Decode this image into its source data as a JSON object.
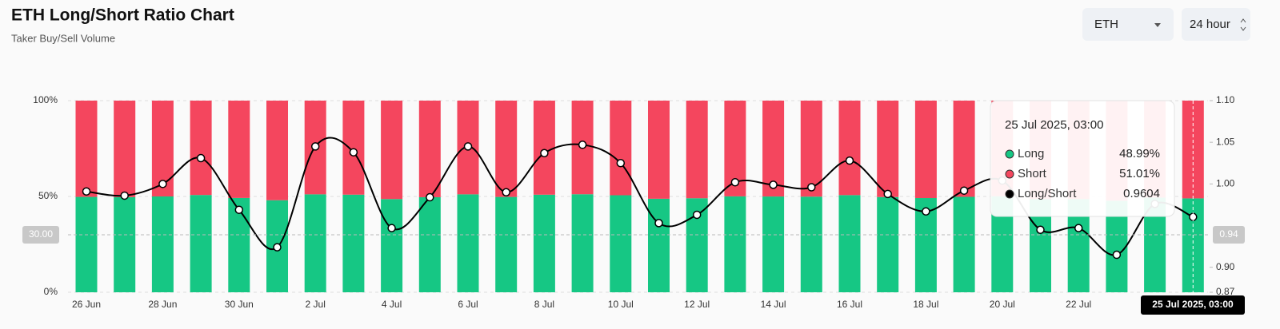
{
  "header": {
    "title": "ETH Long/Short Ratio Chart",
    "subtitle": "Taker Buy/Sell Volume"
  },
  "controls": {
    "symbol": "ETH",
    "interval": "24 hour"
  },
  "chart_data": {
    "type": "bar",
    "categories": [
      "26 Jun",
      null,
      "28 Jun",
      null,
      "30 Jun",
      null,
      "2 Jul",
      null,
      "4 Jul",
      null,
      "6 Jul",
      null,
      "8 Jul",
      null,
      "10 Jul",
      null,
      "12 Jul",
      null,
      "14 Jul",
      null,
      "16 Jul",
      null,
      "18 Jul",
      null,
      "20 Jul",
      null,
      "22 Jul",
      null,
      null,
      null
    ],
    "series": [
      {
        "name": "Long",
        "color": "#16c784",
        "values": [
          49.77,
          49.65,
          50.0,
          50.76,
          49.21,
          48.02,
          51.1,
          50.93,
          48.64,
          49.6,
          51.1,
          49.75,
          50.91,
          51.15,
          50.62,
          48.8,
          49.06,
          50.05,
          49.97,
          49.9,
          50.69,
          49.7,
          49.16,
          49.8,
          50.1,
          48.59,
          48.64,
          47.78,
          49.39,
          48.99
        ]
      },
      {
        "name": "Short",
        "color": "#f4465e",
        "values": [
          50.23,
          50.35,
          50.0,
          49.24,
          50.79,
          51.98,
          48.9,
          49.07,
          51.36,
          50.4,
          48.9,
          50.25,
          49.09,
          48.85,
          49.38,
          51.2,
          50.94,
          49.95,
          50.03,
          50.1,
          49.31,
          50.3,
          50.84,
          50.2,
          49.9,
          51.41,
          51.36,
          52.22,
          50.61,
          51.01
        ]
      },
      {
        "name": "Long/Short",
        "color": "#000000",
        "axis": "y2",
        "values": [
          0.991,
          0.986,
          1.0,
          1.031,
          0.969,
          0.924,
          1.045,
          1.038,
          0.947,
          0.984,
          1.045,
          0.99,
          1.037,
          1.047,
          1.025,
          0.953,
          0.963,
          1.002,
          0.999,
          0.996,
          1.028,
          0.988,
          0.967,
          0.992,
          1.004,
          0.945,
          0.947,
          0.915,
          0.976,
          0.9604
        ]
      }
    ],
    "ylim": [
      0,
      100
    ],
    "yticks": [
      {
        "value": 0,
        "label": "0%"
      },
      {
        "value": 50,
        "label": "50%"
      },
      {
        "value": 100,
        "label": "100%"
      }
    ],
    "y2lim": [
      0.87,
      1.1
    ],
    "y2ticks": [
      0.87,
      {
        "value": 0.9,
        "label": "0.90"
      },
      {
        "value": 1.0,
        "label": "1.00"
      },
      1.05,
      {
        "value": 1.1,
        "label": "1.10"
      }
    ],
    "grid": true,
    "crosshair": {
      "y": 30,
      "y_label": "30.00",
      "y2_label": "0.94"
    },
    "tooltip": {
      "title": "25 Jul 2025, 03:00",
      "labels": [
        "48.99%",
        "51.01%",
        "0.9604"
      ]
    }
  }
}
